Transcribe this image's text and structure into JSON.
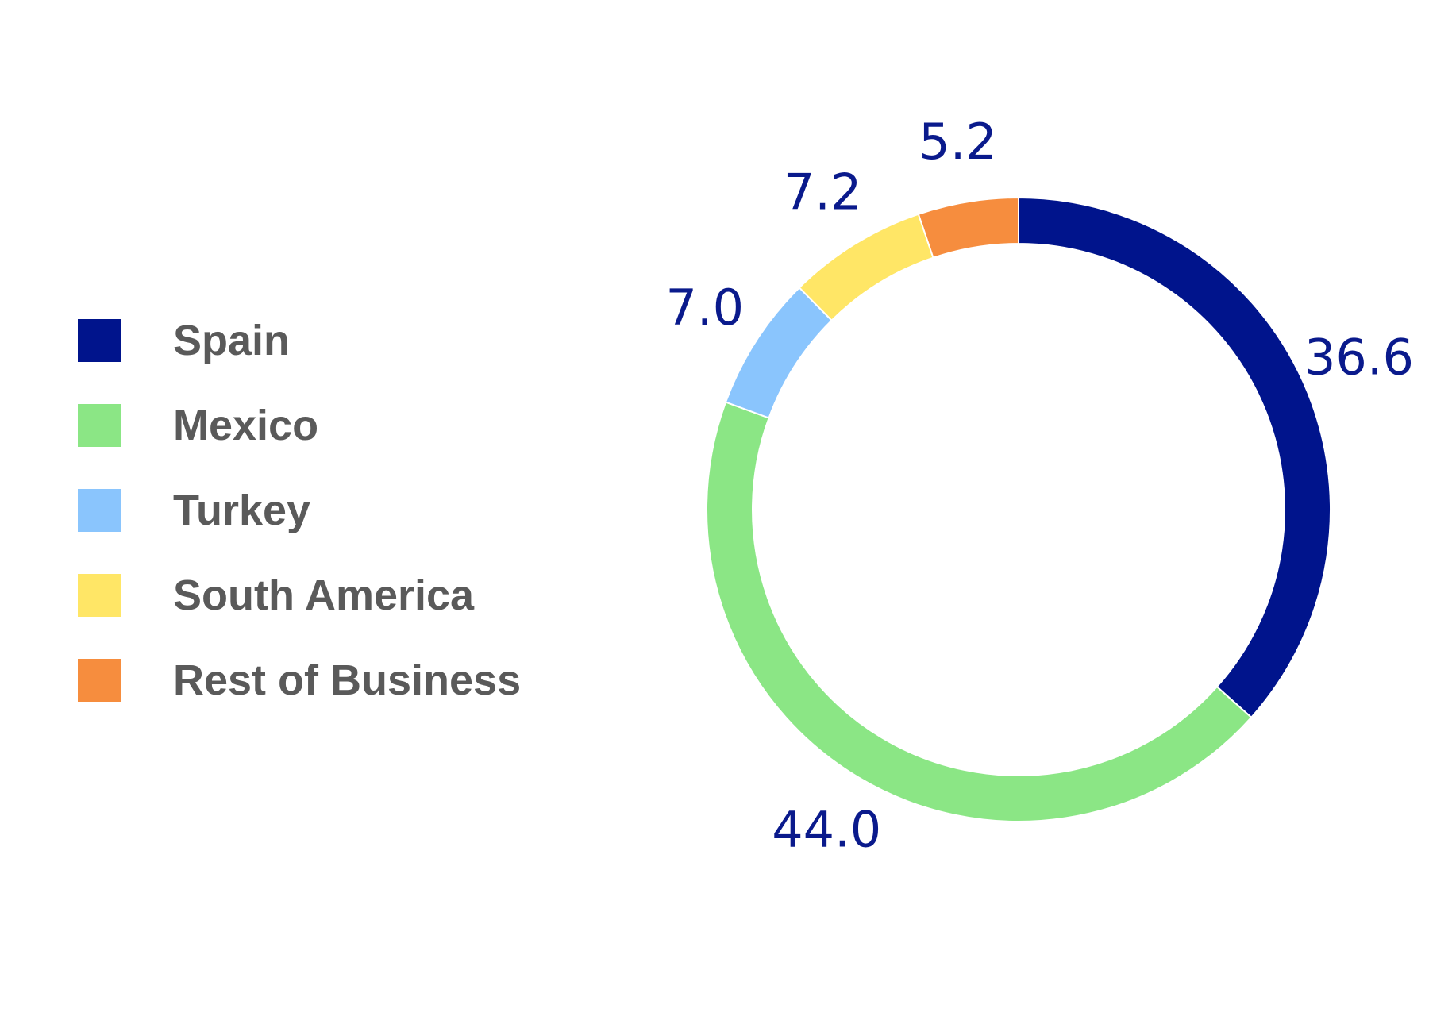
{
  "chart_data": {
    "type": "pie",
    "variant": "donut",
    "title": "",
    "legend_position": "left",
    "series": [
      {
        "name": "Spain",
        "value": 36.6,
        "label": "36.6",
        "color": "#00148c"
      },
      {
        "name": "Mexico",
        "value": 44.0,
        "label": "44.0",
        "color": "#8be685"
      },
      {
        "name": "Turkey",
        "value": 7.0,
        "label": "7.0",
        "color": "#8ac5fd"
      },
      {
        "name": "South America",
        "value": 7.2,
        "label": "7.2",
        "color": "#ffe666"
      },
      {
        "name": "Rest of Business",
        "value": 5.2,
        "label": "5.2",
        "color": "#f68d3e"
      }
    ]
  }
}
